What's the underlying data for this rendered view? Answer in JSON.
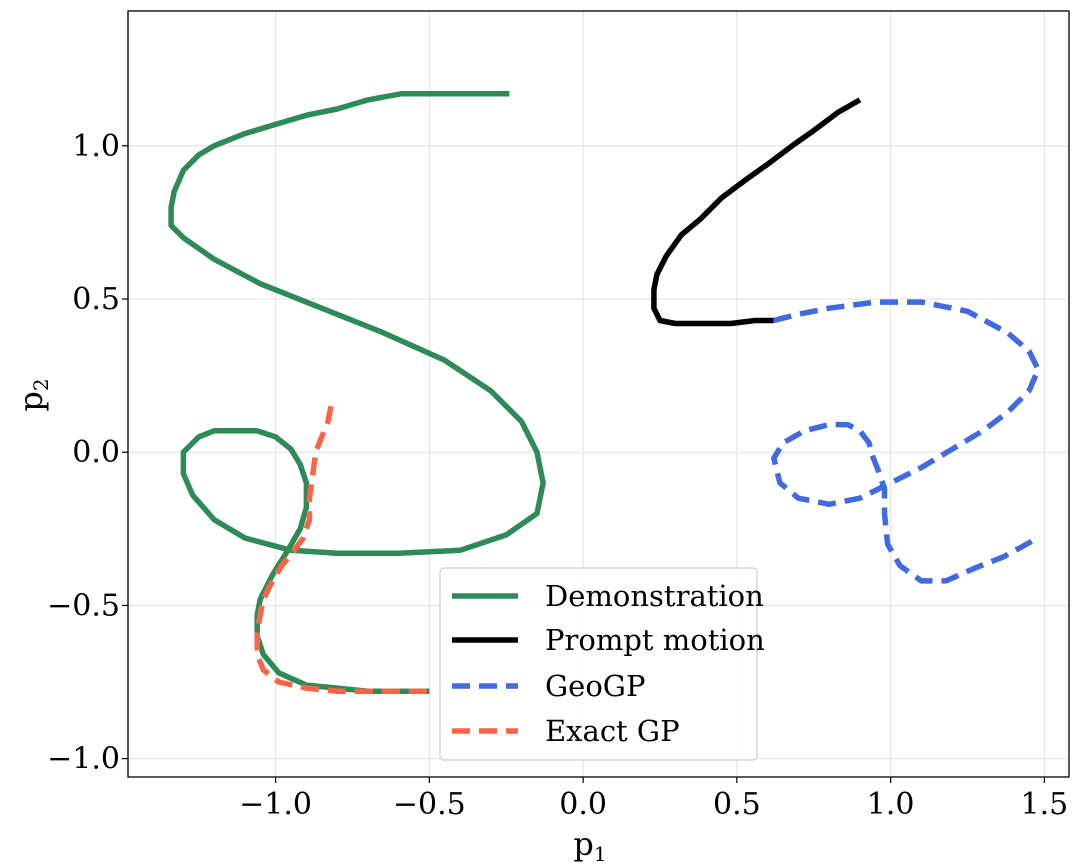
{
  "chart_data": {
    "type": "line",
    "title": "",
    "xlabel": "p",
    "xlabel_subscript": "1",
    "ylabel": "p",
    "ylabel_subscript": "2",
    "xlim": [
      -1.48,
      1.58
    ],
    "ylim": [
      -1.06,
      1.44
    ],
    "xticks": [
      -1.0,
      -0.5,
      0.0,
      0.5,
      1.0,
      1.5
    ],
    "xtick_labels": [
      "−1.0",
      "−0.5",
      "0.0",
      "0.5",
      "1.0",
      "1.5"
    ],
    "yticks": [
      -1.0,
      -0.5,
      0.0,
      0.5,
      1.0
    ],
    "ytick_labels": [
      "−1.0",
      "−0.5",
      "0.0",
      "0.5",
      "1.0"
    ],
    "grid": true,
    "legend_position": "bottom-center",
    "series": [
      {
        "name": "Demonstration",
        "color": "#2e8b57",
        "dash": "solid",
        "x": [
          -0.24,
          -0.4,
          -0.59,
          -0.7,
          -0.8,
          -0.9,
          -1.0,
          -1.1,
          -1.2,
          -1.25,
          -1.3,
          -1.33,
          -1.34,
          -1.34,
          -1.3,
          -1.2,
          -1.05,
          -0.85,
          -0.65,
          -0.45,
          -0.3,
          -0.2,
          -0.15,
          -0.13,
          -0.15,
          -0.25,
          -0.4,
          -0.6,
          -0.8,
          -0.95,
          -1.1,
          -1.2,
          -1.27,
          -1.3,
          -1.3,
          -1.25,
          -1.2,
          -1.06,
          -1.0,
          -0.95,
          -0.92,
          -0.9,
          -0.9,
          -0.92,
          -0.96,
          -1.01,
          -1.05,
          -1.06,
          -1.06,
          -1.04,
          -0.99,
          -0.9,
          -0.8,
          -0.7,
          -0.6,
          -0.5
        ],
        "y": [
          1.17,
          1.17,
          1.17,
          1.15,
          1.12,
          1.1,
          1.07,
          1.04,
          1.0,
          0.97,
          0.92,
          0.85,
          0.8,
          0.74,
          0.7,
          0.63,
          0.55,
          0.47,
          0.39,
          0.3,
          0.2,
          0.1,
          0.0,
          -0.1,
          -0.2,
          -0.27,
          -0.32,
          -0.33,
          -0.33,
          -0.32,
          -0.28,
          -0.22,
          -0.14,
          -0.07,
          0.0,
          0.05,
          0.07,
          0.07,
          0.05,
          0.01,
          -0.04,
          -0.1,
          -0.18,
          -0.25,
          -0.32,
          -0.4,
          -0.48,
          -0.53,
          -0.6,
          -0.66,
          -0.72,
          -0.76,
          -0.77,
          -0.78,
          -0.78,
          -0.78
        ]
      },
      {
        "name": "Prompt motion",
        "color": "#000000",
        "dash": "solid",
        "x": [
          0.9,
          0.83,
          0.75,
          0.68,
          0.6,
          0.53,
          0.45,
          0.38,
          0.32,
          0.27,
          0.24,
          0.23,
          0.23,
          0.25,
          0.3,
          0.38,
          0.48,
          0.56,
          0.62
        ],
        "y": [
          1.15,
          1.11,
          1.05,
          1.0,
          0.94,
          0.89,
          0.83,
          0.76,
          0.71,
          0.64,
          0.58,
          0.53,
          0.47,
          0.43,
          0.42,
          0.42,
          0.42,
          0.43,
          0.43
        ]
      },
      {
        "name": "GeoGP",
        "color": "#4169e1",
        "dash": "dashed",
        "x": [
          0.62,
          0.7,
          0.8,
          0.95,
          1.1,
          1.25,
          1.38,
          1.45,
          1.48,
          1.45,
          1.38,
          1.3,
          1.2,
          1.1,
          1.0,
          0.9,
          0.8,
          0.7,
          0.64,
          0.62,
          0.65,
          0.72,
          0.8,
          0.86,
          0.9,
          0.93,
          0.94,
          0.96,
          0.98,
          0.98,
          0.99,
          1.03,
          1.1,
          1.18,
          1.27,
          1.37,
          1.46
        ],
        "y": [
          0.43,
          0.45,
          0.47,
          0.49,
          0.49,
          0.46,
          0.39,
          0.33,
          0.27,
          0.2,
          0.13,
          0.07,
          0.01,
          -0.05,
          -0.1,
          -0.15,
          -0.17,
          -0.15,
          -0.1,
          -0.02,
          0.03,
          0.07,
          0.09,
          0.09,
          0.07,
          0.03,
          -0.01,
          -0.06,
          -0.12,
          -0.2,
          -0.3,
          -0.37,
          -0.42,
          -0.42,
          -0.38,
          -0.34,
          -0.29
        ]
      },
      {
        "name": "Exact GP",
        "color": "#ff6347",
        "dash": "dashed",
        "x": [
          -0.82,
          -0.83,
          -0.85,
          -0.87,
          -0.88,
          -0.89,
          -0.89,
          -0.91,
          -0.94,
          -0.98,
          -1.01,
          -1.04,
          -1.05,
          -1.06,
          -1.06,
          -1.04,
          -0.99,
          -0.9,
          -0.8,
          -0.7,
          -0.6,
          -0.5
        ],
        "y": [
          0.15,
          0.1,
          0.05,
          0.0,
          -0.08,
          -0.15,
          -0.22,
          -0.28,
          -0.32,
          -0.37,
          -0.42,
          -0.48,
          -0.53,
          -0.59,
          -0.66,
          -0.71,
          -0.75,
          -0.77,
          -0.78,
          -0.78,
          -0.78,
          -0.78
        ]
      }
    ]
  }
}
